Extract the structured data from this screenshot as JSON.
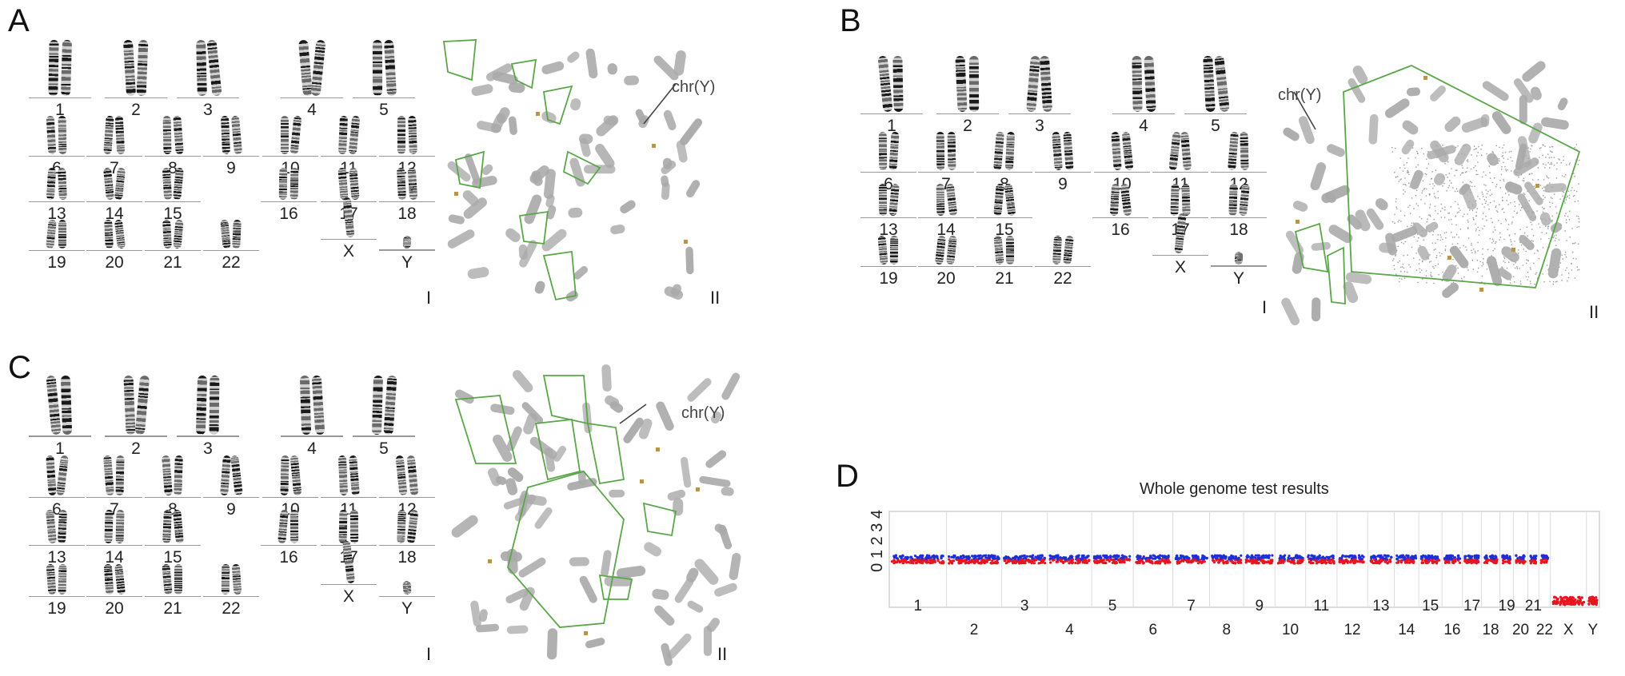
{
  "panels": {
    "A": {
      "letter": "A",
      "karyotype_tag": "I",
      "spread_tag": "II",
      "pointer_label": "chr(Y)"
    },
    "B": {
      "letter": "B",
      "karyotype_tag": "I",
      "spread_tag": "II",
      "pointer_label": "chr(Y)"
    },
    "C": {
      "letter": "C",
      "karyotype_tag": "I",
      "spread_tag": "II",
      "pointer_label": "chr(Y)"
    },
    "D": {
      "letter": "D"
    }
  },
  "karyotype_labels": {
    "row1": [
      "1",
      "2",
      "3",
      "4",
      "5"
    ],
    "row2": [
      "6",
      "7",
      "8",
      "9",
      "10",
      "11",
      "12"
    ],
    "row3": [
      "13",
      "14",
      "15",
      "16",
      "17",
      "18"
    ],
    "row4": [
      "19",
      "20",
      "21",
      "22",
      "X",
      "Y"
    ]
  },
  "colors": {
    "band_dark": "#1a1a1a",
    "band_light": "#cfcfcf",
    "spread_grey": "#a9a9a9",
    "outline_green": "#5aa648",
    "dot_gold": "#b8954a",
    "series_blue": "#1f2fd6",
    "series_red": "#e8141e"
  },
  "chart_data": {
    "type": "scatter",
    "title": "Whole genome test results",
    "ytick_label": "0 1 2 3 4",
    "x_labels_top": [
      "1",
      "3",
      "5",
      "7",
      "9",
      "11",
      "13",
      "15",
      "17",
      "19",
      "21"
    ],
    "x_labels_bottom": [
      "2",
      "4",
      "6",
      "8",
      "10",
      "12",
      "14",
      "16",
      "18",
      "20",
      "22",
      "X",
      "Y"
    ],
    "chromosomes": [
      "1",
      "2",
      "3",
      "4",
      "5",
      "6",
      "7",
      "8",
      "9",
      "10",
      "11",
      "12",
      "13",
      "14",
      "15",
      "16",
      "17",
      "18",
      "19",
      "20",
      "21",
      "22",
      "X",
      "Y"
    ],
    "copy_number": [
      2,
      2,
      2,
      2,
      2,
      2,
      2,
      2,
      2,
      2,
      2,
      2,
      2,
      2,
      2,
      2,
      2,
      2,
      2,
      2,
      2,
      2,
      1,
      1
    ],
    "ylim": [
      0,
      4
    ]
  }
}
